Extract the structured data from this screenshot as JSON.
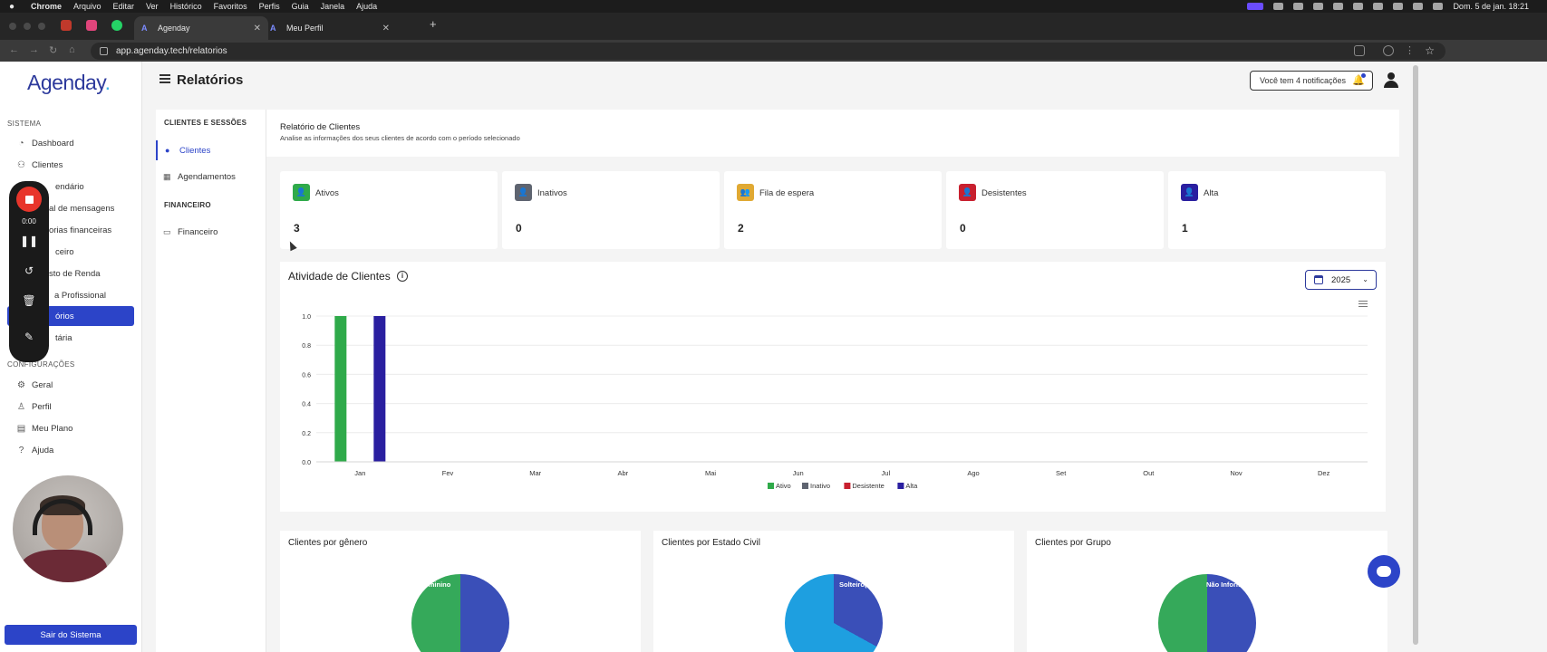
{
  "os": {
    "menus": [
      "Chrome",
      "Arquivo",
      "Editar",
      "Ver",
      "Histórico",
      "Favoritos",
      "Perfis",
      "Guia",
      "Janela",
      "Ajuda"
    ],
    "clock": "Dom. 5 de jan.  18:21"
  },
  "browser": {
    "tabs": [
      {
        "label": "Agenday",
        "active": true
      },
      {
        "label": "Meu Perfil",
        "active": false
      }
    ],
    "url": "app.agenday.tech/relatorios"
  },
  "app": {
    "brand": "Agenday",
    "brand_dot": ".",
    "page_title": "Relatórios",
    "notifications": "Você tem 4 notificações",
    "sidebar": {
      "section_system": "SISTEMA",
      "section_config": "CONFIGURAÇÕES",
      "items": [
        {
          "label": "Dashboard",
          "icon": "dashboard-icon"
        },
        {
          "label": "Clientes",
          "icon": "clients-icon"
        },
        {
          "label": "endário",
          "icon": "calendar-icon"
        },
        {
          "label": "al de mensagens",
          "icon": "message-icon"
        },
        {
          "label": "orias financeiras",
          "icon": "finance-category-icon"
        },
        {
          "label": "ceiro",
          "icon": "finance-icon"
        },
        {
          "label": "sto de Renda",
          "icon": "tax-icon"
        },
        {
          "label": "a Profissional",
          "icon": "professional-icon"
        },
        {
          "label": "órios",
          "icon": "reports-icon",
          "active": true
        },
        {
          "label": "tária",
          "icon": "budget-icon"
        }
      ],
      "config_items": [
        {
          "label": "Geral",
          "icon": "gear-icon"
        },
        {
          "label": "Perfil",
          "icon": "profile-icon"
        },
        {
          "label": "Meu Plano",
          "icon": "plan-icon"
        },
        {
          "label": "Ajuda",
          "icon": "help-icon"
        }
      ],
      "logout": "Sair do Sistema"
    },
    "recorder": {
      "time": "0:00"
    },
    "report_menu": {
      "section_clients": "CLIENTES E SESSÕES",
      "section_finance": "FINANCEIRO",
      "items": {
        "clientes": "Clientes",
        "agendamentos": "Agendamentos",
        "financeiro": "Financeiro"
      }
    },
    "report": {
      "title": "Relatório de Clientes",
      "subtitle": "Analise as informações dos seus clientes de acordo com o período selecionado"
    },
    "stats": [
      {
        "label": "Ativos",
        "value": "3",
        "color": "#2faa4a"
      },
      {
        "label": "Inativos",
        "value": "0",
        "color": "#5e6470"
      },
      {
        "label": "Fila de espera",
        "value": "2",
        "color": "#e0a933"
      },
      {
        "label": "Desistentes",
        "value": "0",
        "color": "#c8202f"
      },
      {
        "label": "Alta",
        "value": "1",
        "color": "#2a1fa0"
      }
    ],
    "activity": {
      "title": "Atividade de Clientes",
      "year": "2025"
    },
    "breakdown_cards": [
      {
        "title": "Clientes por gênero",
        "slice_label": "Feminino"
      },
      {
        "title": "Clientes por Estado Civil",
        "slice_label": "Solteiro(a)"
      },
      {
        "title": "Clientes por Grupo",
        "slice_label": "Não Informado"
      }
    ]
  },
  "chart_data": {
    "type": "bar",
    "categories": [
      "Jan",
      "Fev",
      "Mar",
      "Abr",
      "Mai",
      "Jun",
      "Jul",
      "Ago",
      "Set",
      "Out",
      "Nov",
      "Dez"
    ],
    "series": [
      {
        "name": "Ativo",
        "color": "#2faa4a",
        "values": [
          1,
          0,
          0,
          0,
          0,
          0,
          0,
          0,
          0,
          0,
          0,
          0
        ]
      },
      {
        "name": "Inativo",
        "color": "#5e6470",
        "values": [
          0,
          0,
          0,
          0,
          0,
          0,
          0,
          0,
          0,
          0,
          0,
          0
        ]
      },
      {
        "name": "Desistente",
        "color": "#c8202f",
        "values": [
          0,
          0,
          0,
          0,
          0,
          0,
          0,
          0,
          0,
          0,
          0,
          0
        ]
      },
      {
        "name": "Alta",
        "color": "#2a1fa0",
        "values": [
          1,
          0,
          0,
          0,
          0,
          0,
          0,
          0,
          0,
          0,
          0,
          0
        ]
      }
    ],
    "yticks": [
      "0.0",
      "0.2",
      "0.4",
      "0.6",
      "0.8",
      "1.0"
    ],
    "ylim": [
      0,
      1
    ],
    "legend": "bottom-center",
    "grid": true
  }
}
